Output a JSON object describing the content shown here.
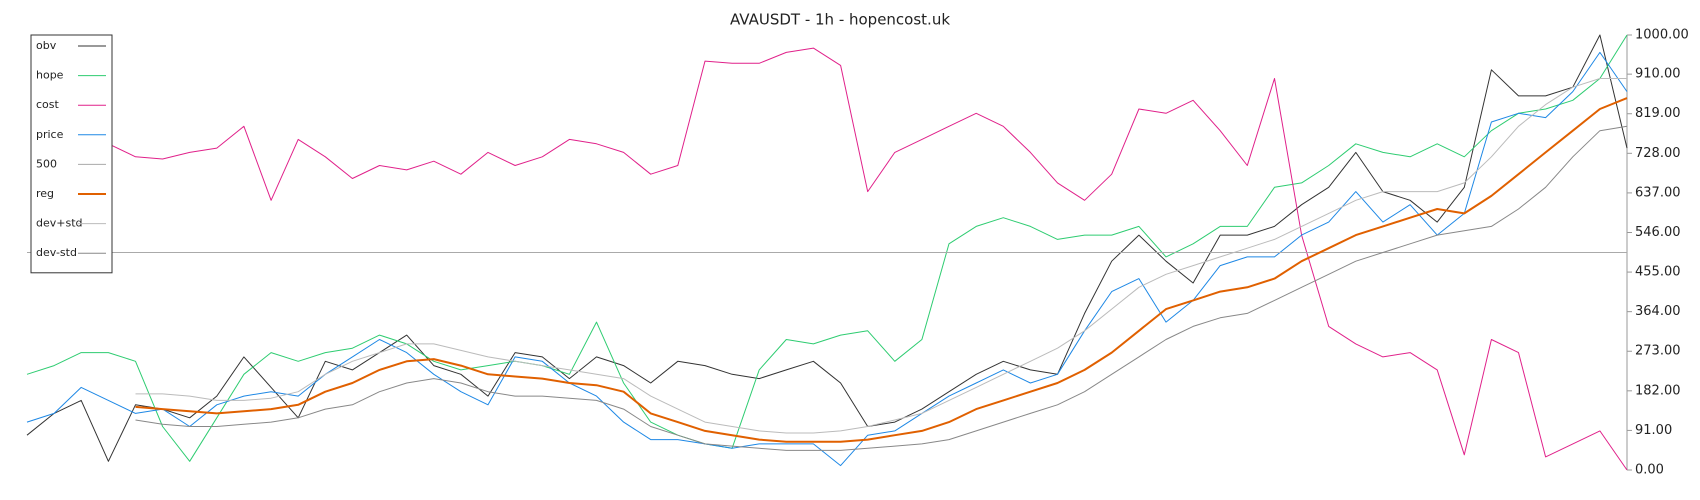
{
  "chart_data": {
    "type": "line",
    "title": "AVAUSDT - 1h - hopencost.uk",
    "categories": [
      null,
      null,
      null,
      null,
      null,
      null,
      null,
      null,
      null,
      null,
      null,
      null,
      null,
      null,
      null,
      null,
      null,
      null,
      null,
      null,
      null,
      null,
      null,
      null,
      null,
      null,
      null,
      null,
      null,
      null,
      null,
      null,
      null,
      null,
      null,
      null,
      null,
      null,
      null,
      null,
      null,
      null,
      null,
      null,
      null,
      null,
      null,
      null,
      null,
      null,
      null,
      null,
      null,
      null,
      null,
      null,
      null,
      null,
      null,
      null
    ],
    "ylim": [
      0,
      1000
    ],
    "yticks": [
      {
        "value": 0,
        "label": "0.00"
      },
      {
        "value": 91,
        "label": "91.00"
      },
      {
        "value": 182,
        "label": "182.00"
      },
      {
        "value": 273,
        "label": "273.00"
      },
      {
        "value": 364,
        "label": "364.00"
      },
      {
        "value": 455,
        "label": "455.00"
      },
      {
        "value": 546,
        "label": "546.00"
      },
      {
        "value": 637,
        "label": "637.00"
      },
      {
        "value": 728,
        "label": "728.00"
      },
      {
        "value": 819,
        "label": "819.00"
      },
      {
        "value": 910,
        "label": "910.00"
      },
      {
        "value": 1000,
        "label": "1000.00"
      }
    ],
    "grid": false,
    "legend": "upper left",
    "series": [
      {
        "name": "obv",
        "color": "#333333",
        "width": 1,
        "values": [
          80,
          130,
          160,
          20,
          150,
          140,
          120,
          170,
          260,
          190,
          120,
          250,
          230,
          270,
          310,
          240,
          220,
          170,
          270,
          260,
          210,
          260,
          240,
          200,
          250,
          240,
          220,
          210,
          230,
          250,
          200,
          100,
          110,
          140,
          180,
          220,
          250,
          230,
          220,
          360,
          480,
          540,
          480,
          430,
          540,
          540,
          560,
          610,
          650,
          730,
          640,
          620,
          570,
          650,
          920,
          860,
          860,
          880,
          1000,
          740
        ]
      },
      {
        "name": "hope",
        "color": "#2ecc71",
        "width": 1,
        "values": [
          220,
          240,
          270,
          270,
          250,
          100,
          20,
          120,
          220,
          270,
          250,
          270,
          280,
          310,
          290,
          250,
          230,
          240,
          250,
          240,
          220,
          340,
          200,
          110,
          80,
          60,
          50,
          230,
          300,
          290,
          310,
          320,
          250,
          300,
          520,
          560,
          580,
          560,
          530,
          540,
          540,
          560,
          490,
          520,
          560,
          560,
          650,
          660,
          700,
          750,
          730,
          720,
          750,
          720,
          780,
          820,
          830,
          850,
          900,
          1000
        ]
      },
      {
        "name": "cost",
        "color": "#e0218a",
        "width": 1,
        "values": [
          null,
          null,
          null,
          750,
          720,
          715,
          730,
          740,
          790,
          620,
          760,
          720,
          670,
          700,
          690,
          710,
          680,
          730,
          700,
          720,
          760,
          750,
          730,
          680,
          700,
          940,
          935,
          935,
          960,
          970,
          930,
          640,
          730,
          760,
          790,
          820,
          790,
          730,
          660,
          620,
          680,
          830,
          820,
          850,
          780,
          700,
          900,
          540,
          330,
          290,
          260,
          270,
          230,
          35,
          300,
          270,
          30,
          60,
          90,
          0
        ]
      },
      {
        "name": "price",
        "color": "#1e88e5",
        "width": 1,
        "values": [
          110,
          130,
          190,
          160,
          130,
          140,
          100,
          150,
          170,
          180,
          170,
          220,
          260,
          300,
          270,
          220,
          180,
          150,
          260,
          250,
          200,
          170,
          110,
          70,
          70,
          60,
          50,
          60,
          60,
          60,
          10,
          80,
          90,
          130,
          170,
          200,
          230,
          200,
          220,
          320,
          410,
          440,
          340,
          390,
          470,
          490,
          490,
          540,
          570,
          640,
          570,
          610,
          540,
          590,
          800,
          820,
          810,
          870,
          960,
          870
        ]
      },
      {
        "name": "500",
        "color": "#aaaaaa",
        "width": 1,
        "values": [
          500,
          500,
          500,
          500,
          500,
          500,
          500,
          500,
          500,
          500,
          500,
          500,
          500,
          500,
          500,
          500,
          500,
          500,
          500,
          500,
          500,
          500,
          500,
          500,
          500,
          500,
          500,
          500,
          500,
          500,
          500,
          500,
          500,
          500,
          500,
          500,
          500,
          500,
          500,
          500,
          500,
          500,
          500,
          500,
          500,
          500,
          500,
          500,
          500,
          500,
          500,
          500,
          500,
          500,
          500,
          500,
          500,
          500,
          500,
          500
        ]
      },
      {
        "name": "reg",
        "color": "#e06000",
        "width": 2,
        "values": [
          null,
          null,
          null,
          null,
          145,
          140,
          135,
          130,
          135,
          140,
          150,
          180,
          200,
          230,
          250,
          255,
          240,
          220,
          215,
          210,
          200,
          195,
          180,
          130,
          110,
          90,
          80,
          70,
          65,
          65,
          65,
          70,
          80,
          90,
          110,
          140,
          160,
          180,
          200,
          230,
          270,
          320,
          370,
          390,
          410,
          420,
          440,
          480,
          510,
          540,
          560,
          580,
          600,
          590,
          630,
          680,
          730,
          780,
          830,
          855
        ]
      },
      {
        "name": "dev+std",
        "color": "#bbbbbb",
        "width": 1,
        "values": [
          null,
          null,
          null,
          null,
          175,
          175,
          170,
          160,
          160,
          165,
          180,
          220,
          250,
          270,
          290,
          290,
          275,
          260,
          250,
          240,
          230,
          220,
          210,
          170,
          140,
          110,
          100,
          90,
          85,
          85,
          90,
          100,
          115,
          130,
          160,
          190,
          220,
          250,
          280,
          320,
          370,
          420,
          450,
          470,
          490,
          510,
          530,
          560,
          590,
          620,
          640,
          640,
          640,
          660,
          720,
          790,
          840,
          880,
          900,
          900
        ]
      },
      {
        "name": "dev-std",
        "color": "#888888",
        "width": 1,
        "values": [
          null,
          null,
          null,
          null,
          115,
          105,
          100,
          100,
          105,
          110,
          120,
          140,
          150,
          180,
          200,
          210,
          200,
          180,
          170,
          170,
          165,
          160,
          140,
          100,
          80,
          60,
          55,
          50,
          45,
          45,
          45,
          50,
          55,
          60,
          70,
          90,
          110,
          130,
          150,
          180,
          220,
          260,
          300,
          330,
          350,
          360,
          390,
          420,
          450,
          480,
          500,
          520,
          540,
          550,
          560,
          600,
          650,
          720,
          780,
          790
        ]
      }
    ]
  }
}
